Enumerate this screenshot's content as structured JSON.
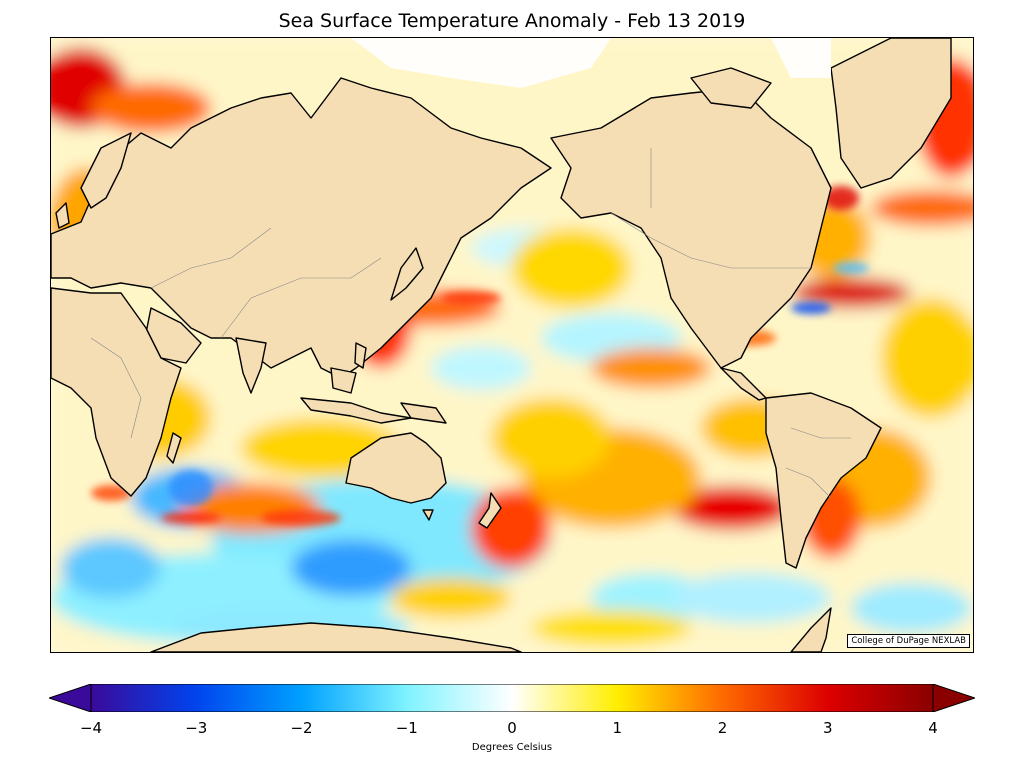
{
  "title": "Sea Surface Temperature Anomaly - Feb 13 2019",
  "credit": "College of DuPage NEXLAB",
  "colorbar": {
    "label": "Degrees Celsius",
    "ticks": [
      "−4",
      "−3",
      "−2",
      "−1",
      "0",
      "1",
      "2",
      "3",
      "4"
    ],
    "min": -4,
    "max": 4,
    "extend": "both",
    "stops": [
      {
        "v": -4,
        "c": "#3a0a9a"
      },
      {
        "v": -3,
        "c": "#0044ee"
      },
      {
        "v": -2,
        "c": "#00a0ff"
      },
      {
        "v": -1,
        "c": "#7ff3ff"
      },
      {
        "v": 0,
        "c": "#ffffff"
      },
      {
        "v": 1,
        "c": "#ffee00"
      },
      {
        "v": 2,
        "c": "#ff6a00"
      },
      {
        "v": 3,
        "c": "#dd0000"
      },
      {
        "v": 4,
        "c": "#8a0000"
      }
    ]
  },
  "colors": {
    "land": "#f5deb3",
    "coastline": "#000000",
    "borders": "#888888"
  }
}
